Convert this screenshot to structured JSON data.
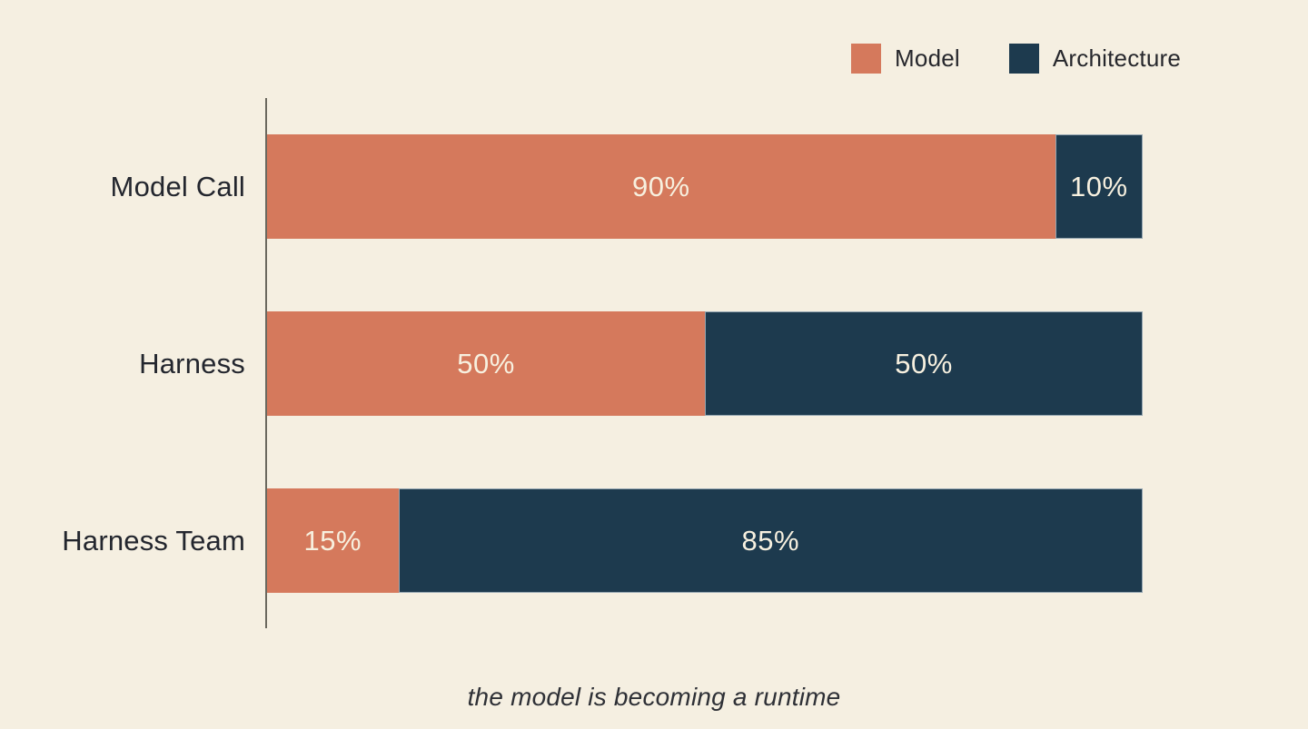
{
  "legend": {
    "items": [
      {
        "label": "Model",
        "color": "#d5795c"
      },
      {
        "label": "Architecture",
        "color": "#1d3a4e"
      }
    ]
  },
  "colors": {
    "background": "#f5efe1",
    "model": "#d5795c",
    "architecture": "#1d3a4e",
    "axis": "#6b685e",
    "category_text": "#23262e",
    "bar_value_text": "#f7f0df",
    "caption_text": "#2e3036"
  },
  "caption": "the model is becoming a runtime",
  "chart_data": {
    "type": "bar",
    "orientation": "horizontal",
    "stacked": true,
    "categories": [
      "Model Call",
      "Harness",
      "Harness Team"
    ],
    "series": [
      {
        "name": "Model",
        "color": "#d5795c",
        "values": [
          90,
          50,
          15
        ]
      },
      {
        "name": "Architecture",
        "color": "#1d3a4e",
        "values": [
          10,
          50,
          85
        ]
      }
    ],
    "value_labels": [
      [
        "90%",
        "10%"
      ],
      [
        "50%",
        "50%"
      ],
      [
        "15%",
        "85%"
      ]
    ],
    "xlim": [
      0,
      100
    ],
    "unit": "%",
    "grid": false,
    "legend_position": "top-right",
    "title": "",
    "xlabel": "",
    "ylabel": "",
    "caption": "the model is becoming a runtime"
  }
}
